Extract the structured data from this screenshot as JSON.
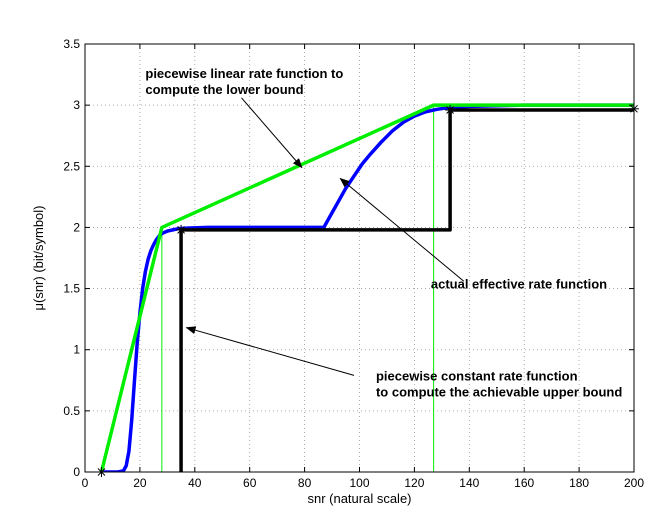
{
  "chart_data": {
    "type": "line",
    "xlabel": "snr (natural scale)",
    "ylabel": "μ(snr)  (bit/symbol)",
    "xlim": [
      0,
      200
    ],
    "ylim": [
      0,
      3.5
    ],
    "xticks": [
      0,
      20,
      40,
      60,
      80,
      100,
      120,
      140,
      160,
      180,
      200
    ],
    "yticks": [
      0,
      0.5,
      1,
      1.5,
      2,
      2.5,
      3,
      3.5
    ],
    "grid": true,
    "series": [
      {
        "color": "#0000ff",
        "x": [
          6,
          12,
          14,
          15,
          16,
          17,
          18,
          19,
          20,
          21,
          22,
          23,
          24,
          25,
          26,
          27,
          28,
          29,
          30,
          32,
          34,
          38,
          45,
          60,
          87,
          89,
          91,
          93,
          95,
          98,
          101,
          104,
          108,
          112,
          116,
          120,
          124,
          128,
          131,
          134,
          140,
          160,
          200
        ],
        "y": [
          0,
          0,
          0.01,
          0.05,
          0.17,
          0.42,
          0.74,
          1.05,
          1.3,
          1.5,
          1.64,
          1.74,
          1.81,
          1.86,
          1.9,
          1.93,
          1.95,
          1.96,
          1.97,
          1.98,
          1.99,
          1.995,
          2.0,
          2.0,
          2.0,
          2.08,
          2.16,
          2.24,
          2.32,
          2.42,
          2.52,
          2.6,
          2.7,
          2.79,
          2.86,
          2.91,
          2.945,
          2.965,
          2.975,
          2.98,
          2.99,
          3.0,
          3.0
        ]
      },
      {
        "color": "#00ee00",
        "x": [
          6,
          28,
          127,
          200
        ],
        "y": [
          0,
          2.0,
          3.0,
          3.0
        ]
      },
      {
        "color": "#000000",
        "x": [
          35,
          35,
          133,
          133,
          200
        ],
        "y": [
          0,
          1.98,
          1.98,
          2.96,
          2.96
        ]
      }
    ],
    "vertical_lines": [
      {
        "color": "#00ee00",
        "x": 28,
        "y_range": [
          0,
          2.0
        ]
      },
      {
        "color": "#00ee00",
        "x": 127,
        "y_range": [
          0,
          3.0
        ]
      }
    ],
    "markers": [
      {
        "symbol": "*",
        "x": 6,
        "y": 0
      },
      {
        "symbol": "*",
        "x": 35,
        "y": 1.98
      },
      {
        "symbol": "*",
        "x": 133,
        "y": 2.96
      },
      {
        "symbol": "*",
        "x": 200,
        "y": 2.97
      }
    ],
    "annotations": [
      {
        "lines": [
          "piecewise linear rate function to",
          "compute the lower bound"
        ],
        "text_x": 22,
        "text_y": 3.22,
        "arrow_from": [
          57,
          3.06
        ],
        "arrow_to": [
          79,
          2.49
        ]
      },
      {
        "lines": [
          "actual effective rate function"
        ],
        "text_x": 126,
        "text_y": 1.5,
        "arrow_from": [
          138,
          1.56
        ],
        "arrow_to": [
          93,
          2.4
        ]
      },
      {
        "lines": [
          "piecewise constant rate function",
          "to compute the achievable upper bound"
        ],
        "text_x": 106,
        "text_y": 0.75,
        "arrow_from": [
          98,
          0.79
        ],
        "arrow_to": [
          37,
          1.18
        ]
      }
    ]
  }
}
